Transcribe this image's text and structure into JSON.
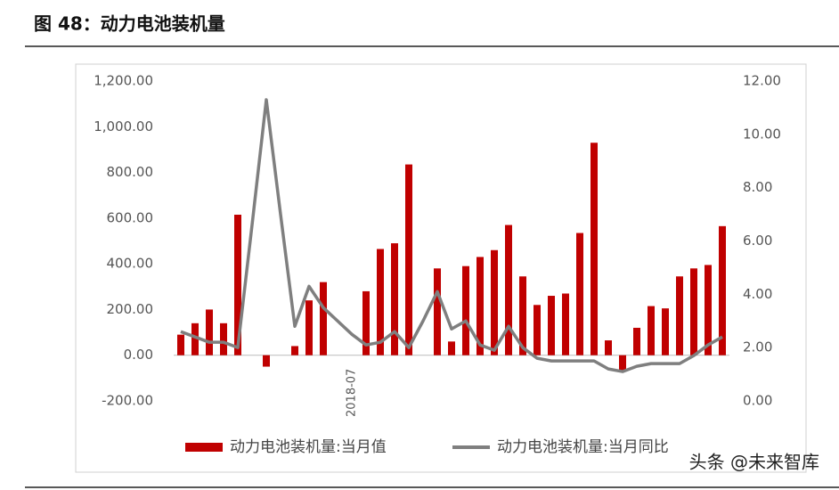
{
  "header": {
    "title": "图 48：动力电池装机量"
  },
  "watermark": "头条 @未来智库",
  "chart_data": {
    "type": "bar-line",
    "categories": [
      null,
      null,
      null,
      null,
      null,
      null,
      null,
      null,
      null,
      null,
      null,
      null,
      "2018-07",
      null,
      null,
      null,
      null,
      null,
      null,
      null,
      null,
      null,
      null,
      null,
      null,
      null,
      null,
      null,
      null,
      null,
      null,
      null,
      null,
      null,
      null,
      null,
      null,
      null,
      null
    ],
    "series": [
      {
        "name": "动力电池装机量:当月值",
        "type": "bar",
        "color": "#c00000",
        "values": [
          90,
          140,
          200,
          140,
          615,
          null,
          -50,
          null,
          40,
          240,
          320,
          null,
          null,
          280,
          465,
          490,
          835,
          null,
          380,
          60,
          390,
          430,
          460,
          570,
          345,
          220,
          260,
          270,
          535,
          930,
          65,
          -70,
          120,
          215,
          205,
          345,
          380,
          395,
          565
        ]
      },
      {
        "name": "动力电池装机量:当月同比",
        "type": "line",
        "axis": "y2",
        "color": "#7f7f7f",
        "values": [
          2.6,
          2.4,
          2.2,
          2.2,
          2.0,
          6.6,
          11.3,
          7.0,
          2.8,
          4.3,
          3.5,
          3.0,
          2.5,
          2.1,
          2.2,
          2.6,
          2.0,
          3.0,
          4.1,
          2.7,
          3.0,
          2.1,
          1.9,
          2.8,
          2.0,
          1.6,
          1.5,
          1.5,
          1.5,
          1.5,
          1.2,
          1.1,
          1.3,
          1.4,
          1.4,
          1.4,
          1.7,
          2.1,
          2.4
        ]
      }
    ],
    "ylim": [
      -200,
      1200
    ],
    "yticks": [
      {
        "value": -200,
        "label": "-200.00"
      },
      {
        "value": 0,
        "label": "0.00"
      },
      {
        "value": 200,
        "label": "200.00"
      },
      {
        "value": 400,
        "label": "400.00"
      },
      {
        "value": 600,
        "label": "600.00"
      },
      {
        "value": 800,
        "label": "800.00"
      },
      {
        "value": 1000,
        "label": "1,000.00"
      },
      {
        "value": 1200,
        "label": "1,200.00"
      }
    ],
    "y2lim": [
      0,
      12
    ],
    "y2ticks": [
      {
        "value": 0,
        "label": "0.00"
      },
      {
        "value": 2,
        "label": "2.00"
      },
      {
        "value": 4,
        "label": "4.00"
      },
      {
        "value": 6,
        "label": "6.00"
      },
      {
        "value": 8,
        "label": "8.00"
      },
      {
        "value": 10,
        "label": "10.00"
      },
      {
        "value": 12,
        "label": "12.00"
      }
    ]
  }
}
